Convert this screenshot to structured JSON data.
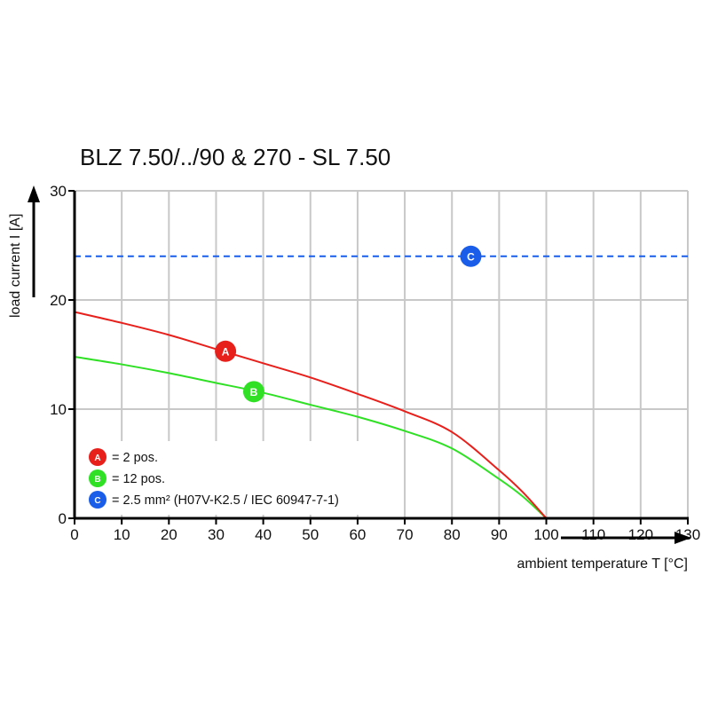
{
  "chart_data": {
    "type": "line",
    "title": "BLZ 7.50/../90 & 270 - SL 7.50",
    "xlabel": "ambient temperature T [°C]",
    "ylabel": "load current I [A]",
    "xlim": [
      0,
      130
    ],
    "ylim": [
      0,
      30
    ],
    "xticks": [
      0,
      10,
      20,
      30,
      40,
      50,
      60,
      70,
      80,
      90,
      100,
      110,
      120,
      130
    ],
    "yticks": [
      0,
      10,
      20,
      30
    ],
    "grid": true,
    "legend_position": "bottom-left",
    "series": [
      {
        "name": "A",
        "legend": "= 2 pos.",
        "color": "#e8201c",
        "style": "solid",
        "x": [
          0,
          10,
          20,
          30,
          40,
          50,
          60,
          70,
          80,
          90,
          95,
          100
        ],
        "y": [
          18.9,
          17.9,
          16.8,
          15.5,
          14.2,
          12.9,
          11.4,
          9.8,
          7.9,
          4.4,
          2.4,
          0
        ],
        "marker_at": [
          32,
          15.3
        ]
      },
      {
        "name": "B",
        "legend": "= 12 pos.",
        "color": "#2fe025",
        "style": "solid",
        "x": [
          0,
          10,
          20,
          30,
          40,
          50,
          60,
          70,
          80,
          90,
          95,
          100
        ],
        "y": [
          14.8,
          14.1,
          13.3,
          12.4,
          11.5,
          10.4,
          9.3,
          8.0,
          6.4,
          3.6,
          2.0,
          0
        ],
        "marker_at": [
          38,
          11.6
        ]
      },
      {
        "name": "C",
        "legend": "= 2.5 mm² (H07V-K2.5 / IEC 60947-7-1)",
        "color": "#1a5de8",
        "style": "dashed",
        "x": [
          0,
          130
        ],
        "y": [
          24,
          24
        ],
        "marker_at": [
          84,
          24
        ]
      }
    ]
  }
}
